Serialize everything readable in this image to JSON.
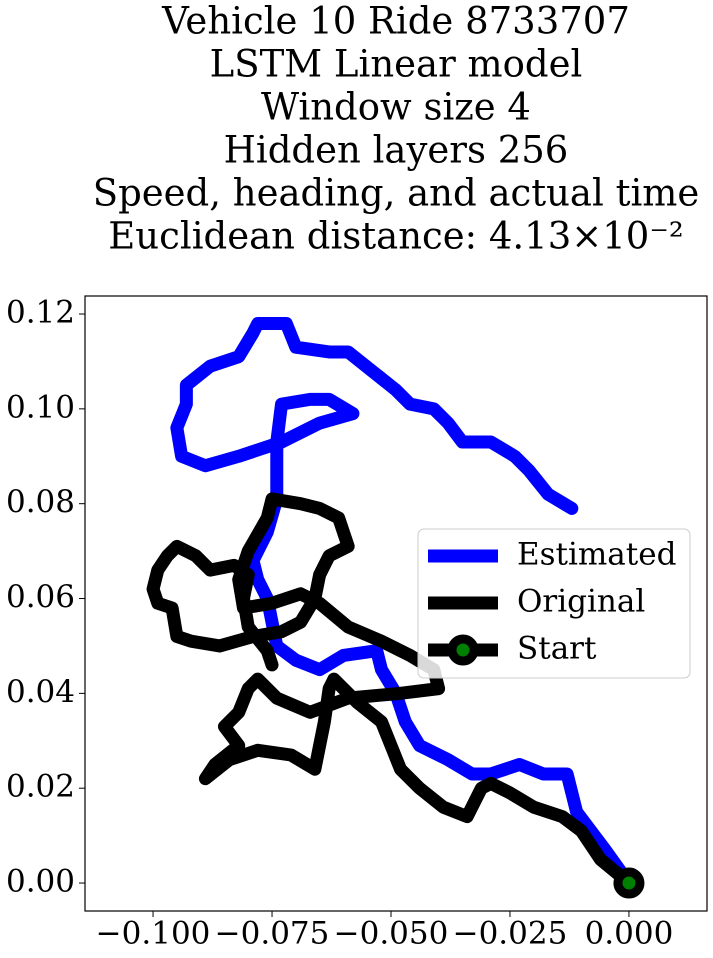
{
  "chart_data": {
    "type": "line",
    "title": [
      "Vehicle 10 Ride 8733707",
      "LSTM Linear model",
      "Window size 4",
      "Hidden layers 256",
      "Speed, heading, and actual time",
      "Euclidean distance: 4.13×10⁻²"
    ],
    "xlim": [
      -0.1143,
      0.0164
    ],
    "ylim": [
      -0.0059,
      0.1238
    ],
    "xticks": [
      {
        "value": -0.1,
        "label": "−0.100"
      },
      {
        "value": -0.075,
        "label": "−0.075"
      },
      {
        "value": -0.05,
        "label": "−0.050"
      },
      {
        "value": -0.025,
        "label": "−0.025"
      },
      {
        "value": 0,
        "label": "0.000"
      }
    ],
    "yticks": [
      {
        "value": 0,
        "label": "0.00"
      },
      {
        "value": 0.02,
        "label": "0.02"
      },
      {
        "value": 0.04,
        "label": "0.04"
      },
      {
        "value": 0.06,
        "label": "0.06"
      },
      {
        "value": 0.08,
        "label": "0.08"
      },
      {
        "value": 0.1,
        "label": "0.10"
      },
      {
        "value": 0.12,
        "label": "0.12"
      }
    ],
    "legend": "center right",
    "series": [
      {
        "name": "Estimated",
        "color": "#0000ff",
        "x": [
          0,
          -0.005,
          -0.008,
          -0.011,
          -0.013,
          -0.018,
          -0.023,
          -0.029,
          -0.033,
          -0.038,
          -0.044,
          -0.047,
          -0.049,
          -0.052,
          -0.053,
          -0.06,
          -0.065,
          -0.07,
          -0.074,
          -0.075,
          -0.076,
          -0.078,
          -0.079,
          -0.076,
          -0.074,
          -0.074,
          -0.074,
          -0.073,
          -0.067,
          -0.063,
          -0.058,
          -0.065,
          -0.073,
          -0.082,
          -0.089,
          -0.094,
          -0.095,
          -0.093,
          -0.093,
          -0.088,
          -0.082,
          -0.079,
          -0.078,
          -0.072,
          -0.07,
          -0.063,
          -0.059,
          -0.054,
          -0.049,
          -0.046,
          -0.041,
          -0.038,
          -0.035,
          -0.029,
          -0.024,
          -0.021,
          -0.017,
          -0.012
        ],
        "y": [
          0,
          0.007,
          0.011,
          0.015,
          0.023,
          0.023,
          0.025,
          0.023,
          0.023,
          0.026,
          0.029,
          0.034,
          0.04,
          0.045,
          0.049,
          0.048,
          0.045,
          0.047,
          0.05,
          0.055,
          0.06,
          0.064,
          0.068,
          0.074,
          0.081,
          0.087,
          0.093,
          0.101,
          0.102,
          0.102,
          0.099,
          0.097,
          0.093,
          0.09,
          0.088,
          0.09,
          0.096,
          0.101,
          0.105,
          0.109,
          0.111,
          0.116,
          0.118,
          0.118,
          0.113,
          0.112,
          0.112,
          0.108,
          0.104,
          0.101,
          0.1,
          0.097,
          0.093,
          0.093,
          0.09,
          0.087,
          0.082,
          0.079
        ]
      },
      {
        "name": "Original",
        "color": "#000000",
        "x": [
          0,
          -0.006,
          -0.01,
          -0.014,
          -0.02,
          -0.025,
          -0.029,
          -0.031,
          -0.034,
          -0.039,
          -0.044,
          -0.048,
          -0.05,
          -0.052,
          -0.057,
          -0.06,
          -0.062,
          -0.063,
          -0.064,
          -0.066,
          -0.071,
          -0.078,
          -0.084,
          -0.089,
          -0.087,
          -0.082,
          -0.085,
          -0.082,
          -0.08,
          -0.078,
          -0.074,
          -0.067,
          -0.059,
          -0.048,
          -0.04,
          -0.041,
          -0.046,
          -0.052,
          -0.059,
          -0.065,
          -0.069,
          -0.075,
          -0.081,
          -0.082,
          -0.08,
          -0.076,
          -0.075,
          -0.069,
          -0.065,
          -0.061,
          -0.059,
          -0.063,
          -0.065,
          -0.066,
          -0.069,
          -0.073,
          -0.079,
          -0.086,
          -0.092,
          -0.095,
          -0.096,
          -0.099,
          -0.1,
          -0.099,
          -0.097,
          -0.095,
          -0.091,
          -0.088,
          -0.083,
          -0.08,
          -0.081,
          -0.08,
          -0.076,
          -0.075
        ],
        "y": [
          0,
          0.005,
          0.011,
          0.014,
          0.016,
          0.019,
          0.021,
          0.02,
          0.014,
          0.016,
          0.02,
          0.024,
          0.029,
          0.034,
          0.038,
          0.041,
          0.043,
          0.041,
          0.034,
          0.024,
          0.027,
          0.028,
          0.026,
          0.022,
          0.025,
          0.029,
          0.033,
          0.036,
          0.041,
          0.043,
          0.039,
          0.036,
          0.039,
          0.04,
          0.041,
          0.045,
          0.048,
          0.051,
          0.054,
          0.059,
          0.061,
          0.059,
          0.058,
          0.064,
          0.07,
          0.077,
          0.081,
          0.08,
          0.079,
          0.077,
          0.071,
          0.069,
          0.065,
          0.06,
          0.055,
          0.053,
          0.052,
          0.05,
          0.051,
          0.052,
          0.058,
          0.059,
          0.062,
          0.066,
          0.069,
          0.071,
          0.069,
          0.066,
          0.067,
          0.065,
          0.06,
          0.054,
          0.049,
          0.046
        ]
      },
      {
        "name": "Start",
        "color": "#000000",
        "marker_color": "#008000",
        "x": [
          0
        ],
        "y": [
          0
        ]
      }
    ]
  }
}
